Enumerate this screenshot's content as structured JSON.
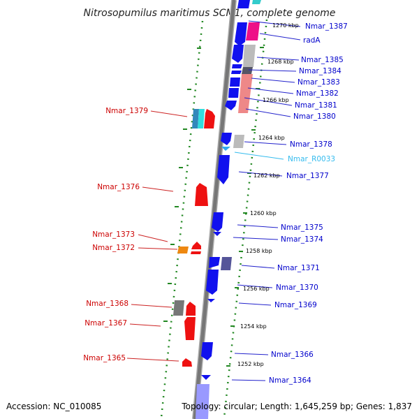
{
  "title": "Nitrosopumilus maritimus SCM1, complete genome",
  "footer": {
    "accession": "Accession: NC_010085",
    "summary": "Topology: circular; Length: 1,645,259 bp; Genes: 1,837"
  },
  "colors": {
    "forward_label": "#0000cc",
    "reverse_label": "#cc0000",
    "rna_label": "#33bbee",
    "backbone": "#777777",
    "dotted_track": "#228822"
  },
  "ticks": [
    {
      "label": "1270 kbp",
      "kbp": 1270
    },
    {
      "label": "1268 kbp",
      "kbp": 1268
    },
    {
      "label": "1266 kbp",
      "kbp": 1266
    },
    {
      "label": "1264 kbp",
      "kbp": 1264
    },
    {
      "label": "1262 kbp",
      "kbp": 1262
    },
    {
      "label": "1260 kbp",
      "kbp": 1260
    },
    {
      "label": "1258 kbp",
      "kbp": 1258
    },
    {
      "label": "1256 kbp",
      "kbp": 1256
    },
    {
      "label": "1254 kbp",
      "kbp": 1254
    },
    {
      "label": "1252 kbp",
      "kbp": 1252
    }
  ],
  "right_labels": [
    {
      "text": "Nmar_1387",
      "kind": "forward"
    },
    {
      "text": "radA",
      "kind": "forward"
    },
    {
      "text": "Nmar_1385",
      "kind": "forward"
    },
    {
      "text": "Nmar_1384",
      "kind": "forward"
    },
    {
      "text": "Nmar_1383",
      "kind": "forward"
    },
    {
      "text": "Nmar_1382",
      "kind": "forward"
    },
    {
      "text": "Nmar_1381",
      "kind": "forward"
    },
    {
      "text": "Nmar_1380",
      "kind": "forward"
    },
    {
      "text": "Nmar_1378",
      "kind": "forward"
    },
    {
      "text": "Nmar_R0033",
      "kind": "rna"
    },
    {
      "text": "Nmar_1377",
      "kind": "forward"
    },
    {
      "text": "Nmar_1375",
      "kind": "forward"
    },
    {
      "text": "Nmar_1374",
      "kind": "forward"
    },
    {
      "text": "Nmar_1371",
      "kind": "forward"
    },
    {
      "text": "Nmar_1370",
      "kind": "forward"
    },
    {
      "text": "Nmar_1369",
      "kind": "forward"
    },
    {
      "text": "Nmar_1366",
      "kind": "forward"
    },
    {
      "text": "Nmar_1364",
      "kind": "forward"
    }
  ],
  "left_labels": [
    {
      "text": "Nmar_1379",
      "kind": "reverse"
    },
    {
      "text": "Nmar_1376",
      "kind": "reverse"
    },
    {
      "text": "Nmar_1373",
      "kind": "reverse"
    },
    {
      "text": "Nmar_1372",
      "kind": "reverse"
    },
    {
      "text": "Nmar_1368",
      "kind": "reverse"
    },
    {
      "text": "Nmar_1367",
      "kind": "reverse"
    },
    {
      "text": "Nmar_1365",
      "kind": "reverse"
    }
  ]
}
